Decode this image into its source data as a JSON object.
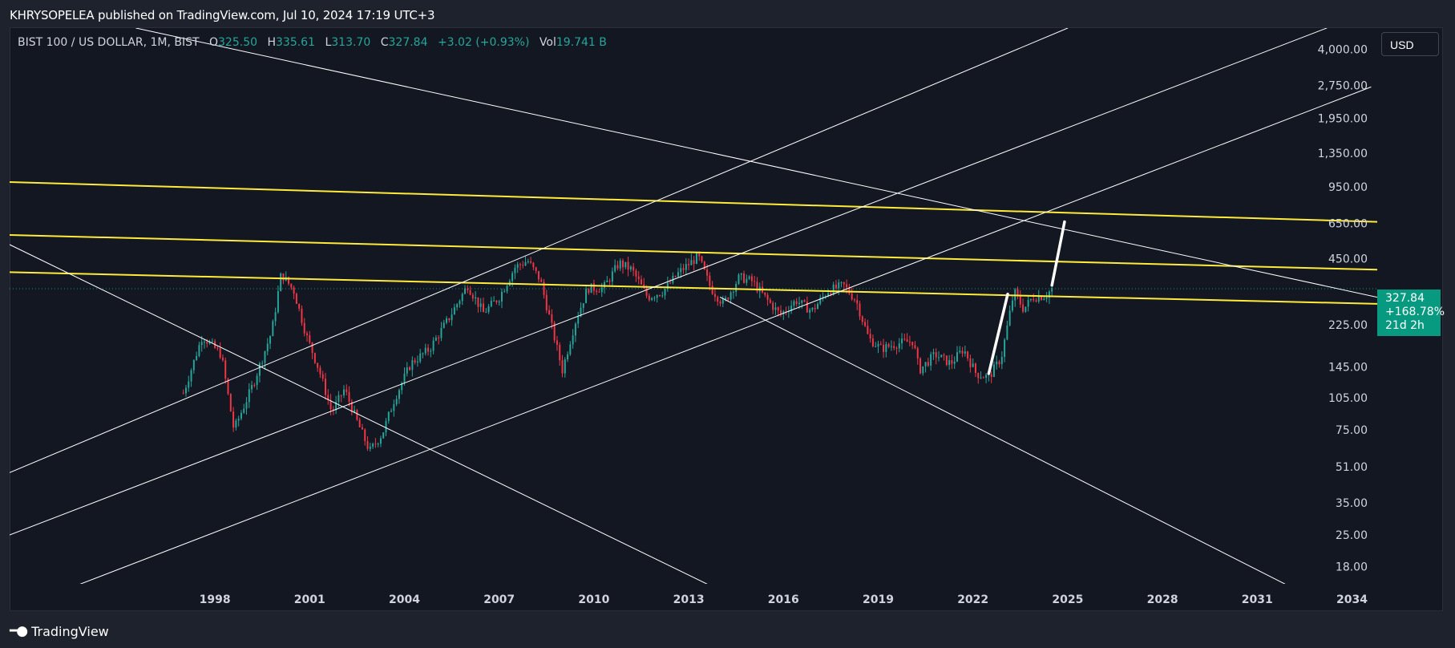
{
  "header": {
    "published_text": "KHRYSOPELEA published on TradingView.com, Jul 10, 2024 17:19 UTC+3"
  },
  "legend": {
    "symbol": "BIST 100 / US DOLLAR, 1M, BIST",
    "open_label": "O",
    "open": "325.50",
    "high_label": "H",
    "high": "335.61",
    "low_label": "L",
    "low": "313.70",
    "close_label": "C",
    "close": "327.84",
    "change": "+3.02 (+0.93%)",
    "vol_label": "Vol",
    "vol": "19.741 B"
  },
  "currency_button": "USD",
  "price_tag": {
    "price": "327.84",
    "change_pct": "+168.78%",
    "countdown": "21d 2h"
  },
  "footer": {
    "brand": "TradingView"
  },
  "colors": {
    "up": "#26a69a",
    "down": "#f23645",
    "yellow": "#ffeb3b",
    "white": "#ffffff",
    "background": "#131722"
  },
  "chart_data": {
    "type": "candlestick",
    "title": "BIST 100 / US DOLLAR, 1M, BIST",
    "y_scale": "log",
    "y_ticks": [
      "4,000.00",
      "2,750.00",
      "1,950.00",
      "1,350.00",
      "950.00",
      "650.00",
      "450.00",
      "225.00",
      "145.00",
      "105.00",
      "75.00",
      "51.00",
      "35.00",
      "25.00",
      "18.00"
    ],
    "x_ticks": [
      "1998",
      "2001",
      "2004",
      "2007",
      "2010",
      "2013",
      "2016",
      "2019",
      "2022",
      "2025",
      "2028",
      "2031",
      "2034"
    ],
    "xlim": [
      1991.5,
      2034.8
    ],
    "ylim": [
      15,
      5000
    ],
    "grid": false,
    "last_price": 327.84,
    "price_path": [
      [
        1997.0,
        110
      ],
      [
        1997.6,
        200
      ],
      [
        1998.2,
        165
      ],
      [
        1998.6,
        75
      ],
      [
        1999.2,
        120
      ],
      [
        1999.8,
        210
      ],
      [
        2000.1,
        385
      ],
      [
        2000.5,
        320
      ],
      [
        2000.9,
        200
      ],
      [
        2001.3,
        140
      ],
      [
        2001.7,
        90
      ],
      [
        2002.1,
        115
      ],
      [
        2002.5,
        82
      ],
      [
        2002.9,
        60
      ],
      [
        2003.3,
        72
      ],
      [
        2003.7,
        105
      ],
      [
        2004.2,
        150
      ],
      [
        2004.8,
        175
      ],
      [
        2005.4,
        240
      ],
      [
        2006.0,
        340
      ],
      [
        2006.5,
        255
      ],
      [
        2007.0,
        300
      ],
      [
        2007.5,
        410
      ],
      [
        2007.9,
        440
      ],
      [
        2008.3,
        360
      ],
      [
        2008.7,
        210
      ],
      [
        2009.0,
        140
      ],
      [
        2009.4,
        230
      ],
      [
        2009.8,
        330
      ],
      [
        2010.3,
        330
      ],
      [
        2010.8,
        430
      ],
      [
        2011.2,
        400
      ],
      [
        2011.7,
        300
      ],
      [
        2012.2,
        320
      ],
      [
        2012.7,
        390
      ],
      [
        2013.3,
        460
      ],
      [
        2013.7,
        330
      ],
      [
        2014.1,
        280
      ],
      [
        2014.6,
        370
      ],
      [
        2015.0,
        355
      ],
      [
        2015.5,
        290
      ],
      [
        2015.9,
        250
      ],
      [
        2016.4,
        290
      ],
      [
        2016.9,
        260
      ],
      [
        2017.4,
        320
      ],
      [
        2017.9,
        340
      ],
      [
        2018.3,
        290
      ],
      [
        2018.7,
        195
      ],
      [
        2019.1,
        175
      ],
      [
        2019.6,
        185
      ],
      [
        2020.1,
        190
      ],
      [
        2020.3,
        140
      ],
      [
        2020.8,
        165
      ],
      [
        2021.3,
        150
      ],
      [
        2021.7,
        175
      ],
      [
        2022.1,
        135
      ],
      [
        2022.5,
        130
      ],
      [
        2022.9,
        160
      ],
      [
        2023.3,
        320
      ],
      [
        2023.6,
        265
      ],
      [
        2023.9,
        300
      ],
      [
        2024.3,
        305
      ],
      [
        2024.5,
        327.84
      ]
    ],
    "trendlines": [
      {
        "color": "yellow",
        "x": [
          1991.5,
          2034.8
        ],
        "y": [
          1000,
          660
        ]
      },
      {
        "color": "yellow",
        "x": [
          1991.5,
          2034.8
        ],
        "y": [
          575,
          400
        ]
      },
      {
        "color": "yellow",
        "x": [
          1991.5,
          2034.8
        ],
        "y": [
          390,
          280
        ]
      },
      {
        "color": "white",
        "x": [
          1992.0,
          2034.6
        ],
        "y": [
          12,
          2700
        ]
      },
      {
        "color": "white",
        "x": [
          1991.5,
          2033.2
        ],
        "y": [
          25,
          5000
        ]
      },
      {
        "color": "white",
        "x": [
          1991.5,
          2025.0
        ],
        "y": [
          48,
          5000
        ]
      },
      {
        "color": "white",
        "x": [
          1991.5,
          2014.0
        ],
        "y": [
          520,
          14
        ]
      },
      {
        "color": "white",
        "x": [
          1995.5,
          2034.8
        ],
        "y": [
          5000,
          300
        ]
      },
      {
        "color": "white",
        "x": [
          2014.0,
          2033.2
        ],
        "y": [
          300,
          12
        ]
      },
      {
        "color": "white",
        "x": [
          2022.5,
          2023.1
        ],
        "y": [
          135,
          310
        ],
        "width": "thick"
      },
      {
        "color": "white",
        "x": [
          2024.5,
          2024.9
        ],
        "y": [
          340,
          660
        ],
        "width": "thick"
      }
    ]
  }
}
